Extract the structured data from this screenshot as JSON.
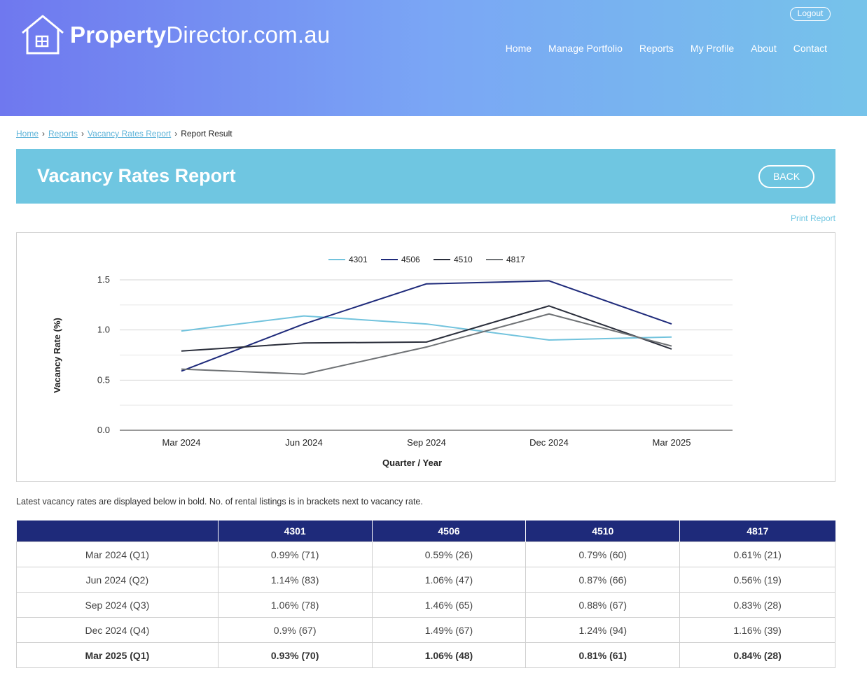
{
  "brand": {
    "name_bold": "Property",
    "name_rest": "Director.com.au"
  },
  "header": {
    "logout_label": "Logout",
    "nav": [
      "Home",
      "Manage Portfolio",
      "Reports",
      "My Profile",
      "About",
      "Contact"
    ]
  },
  "breadcrumb": {
    "items": [
      "Home",
      "Reports",
      "Vacancy Rates Report"
    ],
    "current": "Report Result"
  },
  "page": {
    "title": "Vacancy Rates Report",
    "back_label": "BACK",
    "print_label": "Print Report"
  },
  "chart_data": {
    "type": "line",
    "categories": [
      "Mar 2024",
      "Jun 2024",
      "Sep 2024",
      "Dec 2024",
      "Mar 2025"
    ],
    "series": [
      {
        "name": "4301",
        "color": "#72c3dd",
        "values": [
          0.99,
          1.14,
          1.06,
          0.9,
          0.93
        ]
      },
      {
        "name": "4506",
        "color": "#1e2a7a",
        "values": [
          0.59,
          1.06,
          1.46,
          1.49,
          1.06
        ]
      },
      {
        "name": "4510",
        "color": "#2a2e3b",
        "values": [
          0.79,
          0.87,
          0.88,
          1.24,
          0.81
        ]
      },
      {
        "name": "4817",
        "color": "#6f7275",
        "values": [
          0.61,
          0.56,
          0.83,
          1.16,
          0.84
        ]
      }
    ],
    "xlabel": "Quarter / Year",
    "ylabel": "Vacancy Rate (%)",
    "ylim": [
      0,
      1.5
    ],
    "yticks": [
      "0.0",
      "0.5",
      "1.0",
      "1.5"
    ],
    "grid": true,
    "legend": "top-center"
  },
  "table": {
    "note": "Latest vacancy rates are displayed below in bold. No. of rental listings is in brackets next to vacancy rate.",
    "headers": [
      "",
      "4301",
      "4506",
      "4510",
      "4817"
    ],
    "rows": [
      [
        "Mar 2024 (Q1)",
        "0.99% (71)",
        "0.59% (26)",
        "0.79% (60)",
        "0.61% (21)"
      ],
      [
        "Jun 2024 (Q2)",
        "1.14% (83)",
        "1.06% (47)",
        "0.87% (66)",
        "0.56% (19)"
      ],
      [
        "Sep 2024 (Q3)",
        "1.06% (78)",
        "1.46% (65)",
        "0.88% (67)",
        "0.83% (28)"
      ],
      [
        "Dec 2024 (Q4)",
        "0.9% (67)",
        "1.49% (67)",
        "1.24% (94)",
        "1.16% (39)"
      ],
      [
        "Mar 2025 (Q1)",
        "0.93% (70)",
        "1.06% (48)",
        "0.81% (61)",
        "0.84% (28)"
      ]
    ],
    "bold_row": 4
  }
}
